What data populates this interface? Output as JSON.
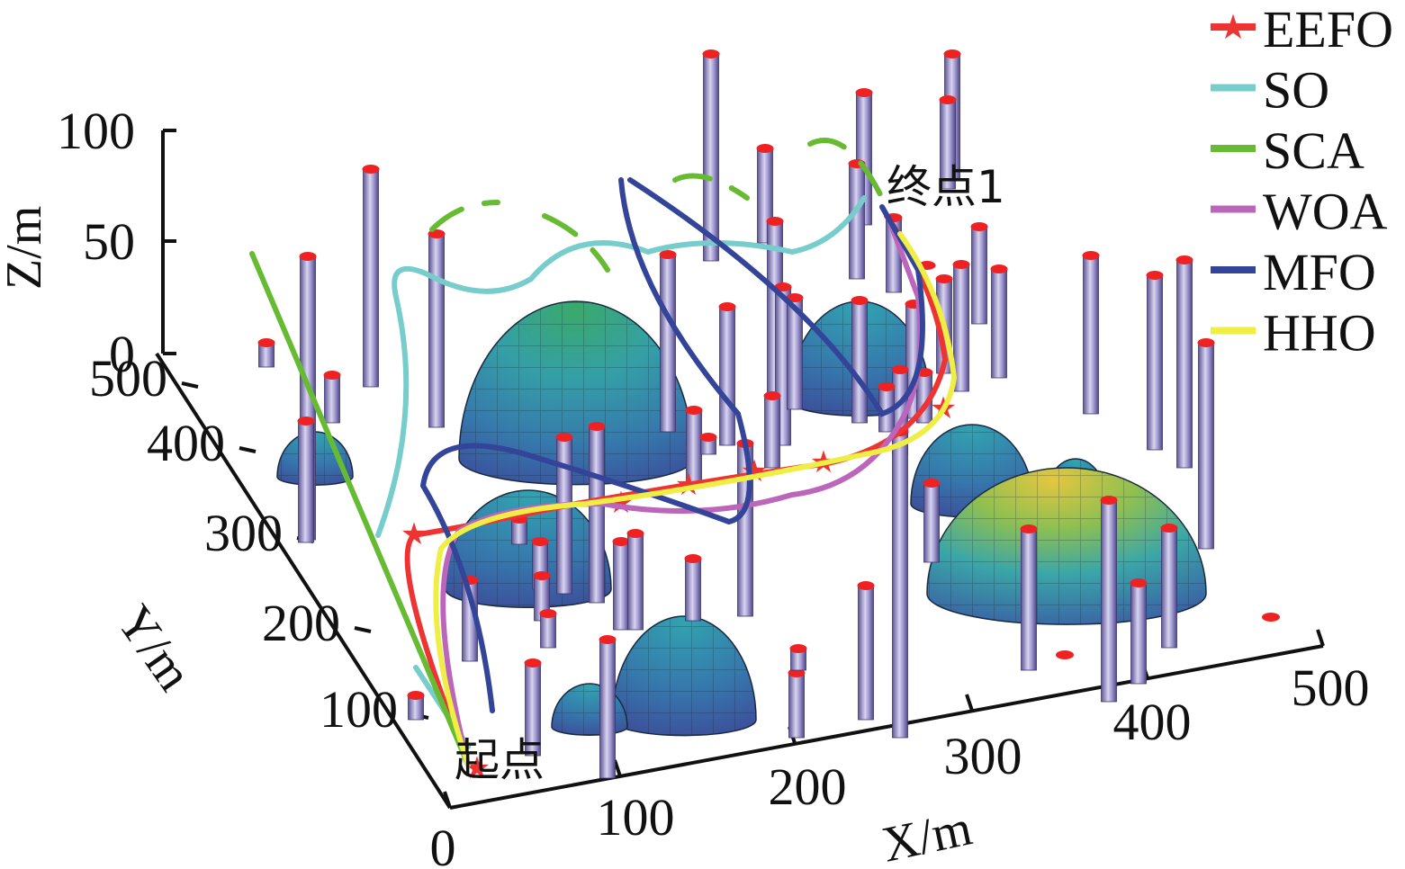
{
  "chart_data": {
    "type": "3d-path",
    "title": "",
    "xlabel": "X/m",
    "ylabel": "Y/m",
    "zlabel": "Z/m",
    "x_ticks": [
      "0",
      "100",
      "200",
      "300",
      "400",
      "500"
    ],
    "y_ticks": [
      "100",
      "200",
      "300",
      "400",
      "500"
    ],
    "z_ticks": [
      "0",
      "50",
      "100"
    ],
    "xlim": [
      0,
      500
    ],
    "ylim": [
      0,
      500
    ],
    "zlim": [
      0,
      100
    ],
    "start_label": "起点",
    "end_label": "终点1",
    "legend_position": "top-right",
    "series": [
      {
        "name": "EEFO",
        "color": "#ee3333",
        "marker": "star"
      },
      {
        "name": "SO",
        "color": "#77cccc",
        "marker": "none"
      },
      {
        "name": "SCA",
        "color": "#66bb33",
        "marker": "none"
      },
      {
        "name": "WOA",
        "color": "#bb66bb",
        "marker": "none"
      },
      {
        "name": "MFO",
        "color": "#334499",
        "marker": "none"
      },
      {
        "name": "HHO",
        "color": "#eeee44",
        "marker": "none"
      }
    ],
    "obstacle_colors": {
      "pillar": "#8c84c4",
      "pillar_cap": "#ee2222",
      "dome_low": "#3d4f9e",
      "dome_mid": "#3aa6b4",
      "dome_high": "#e6c94a"
    }
  }
}
